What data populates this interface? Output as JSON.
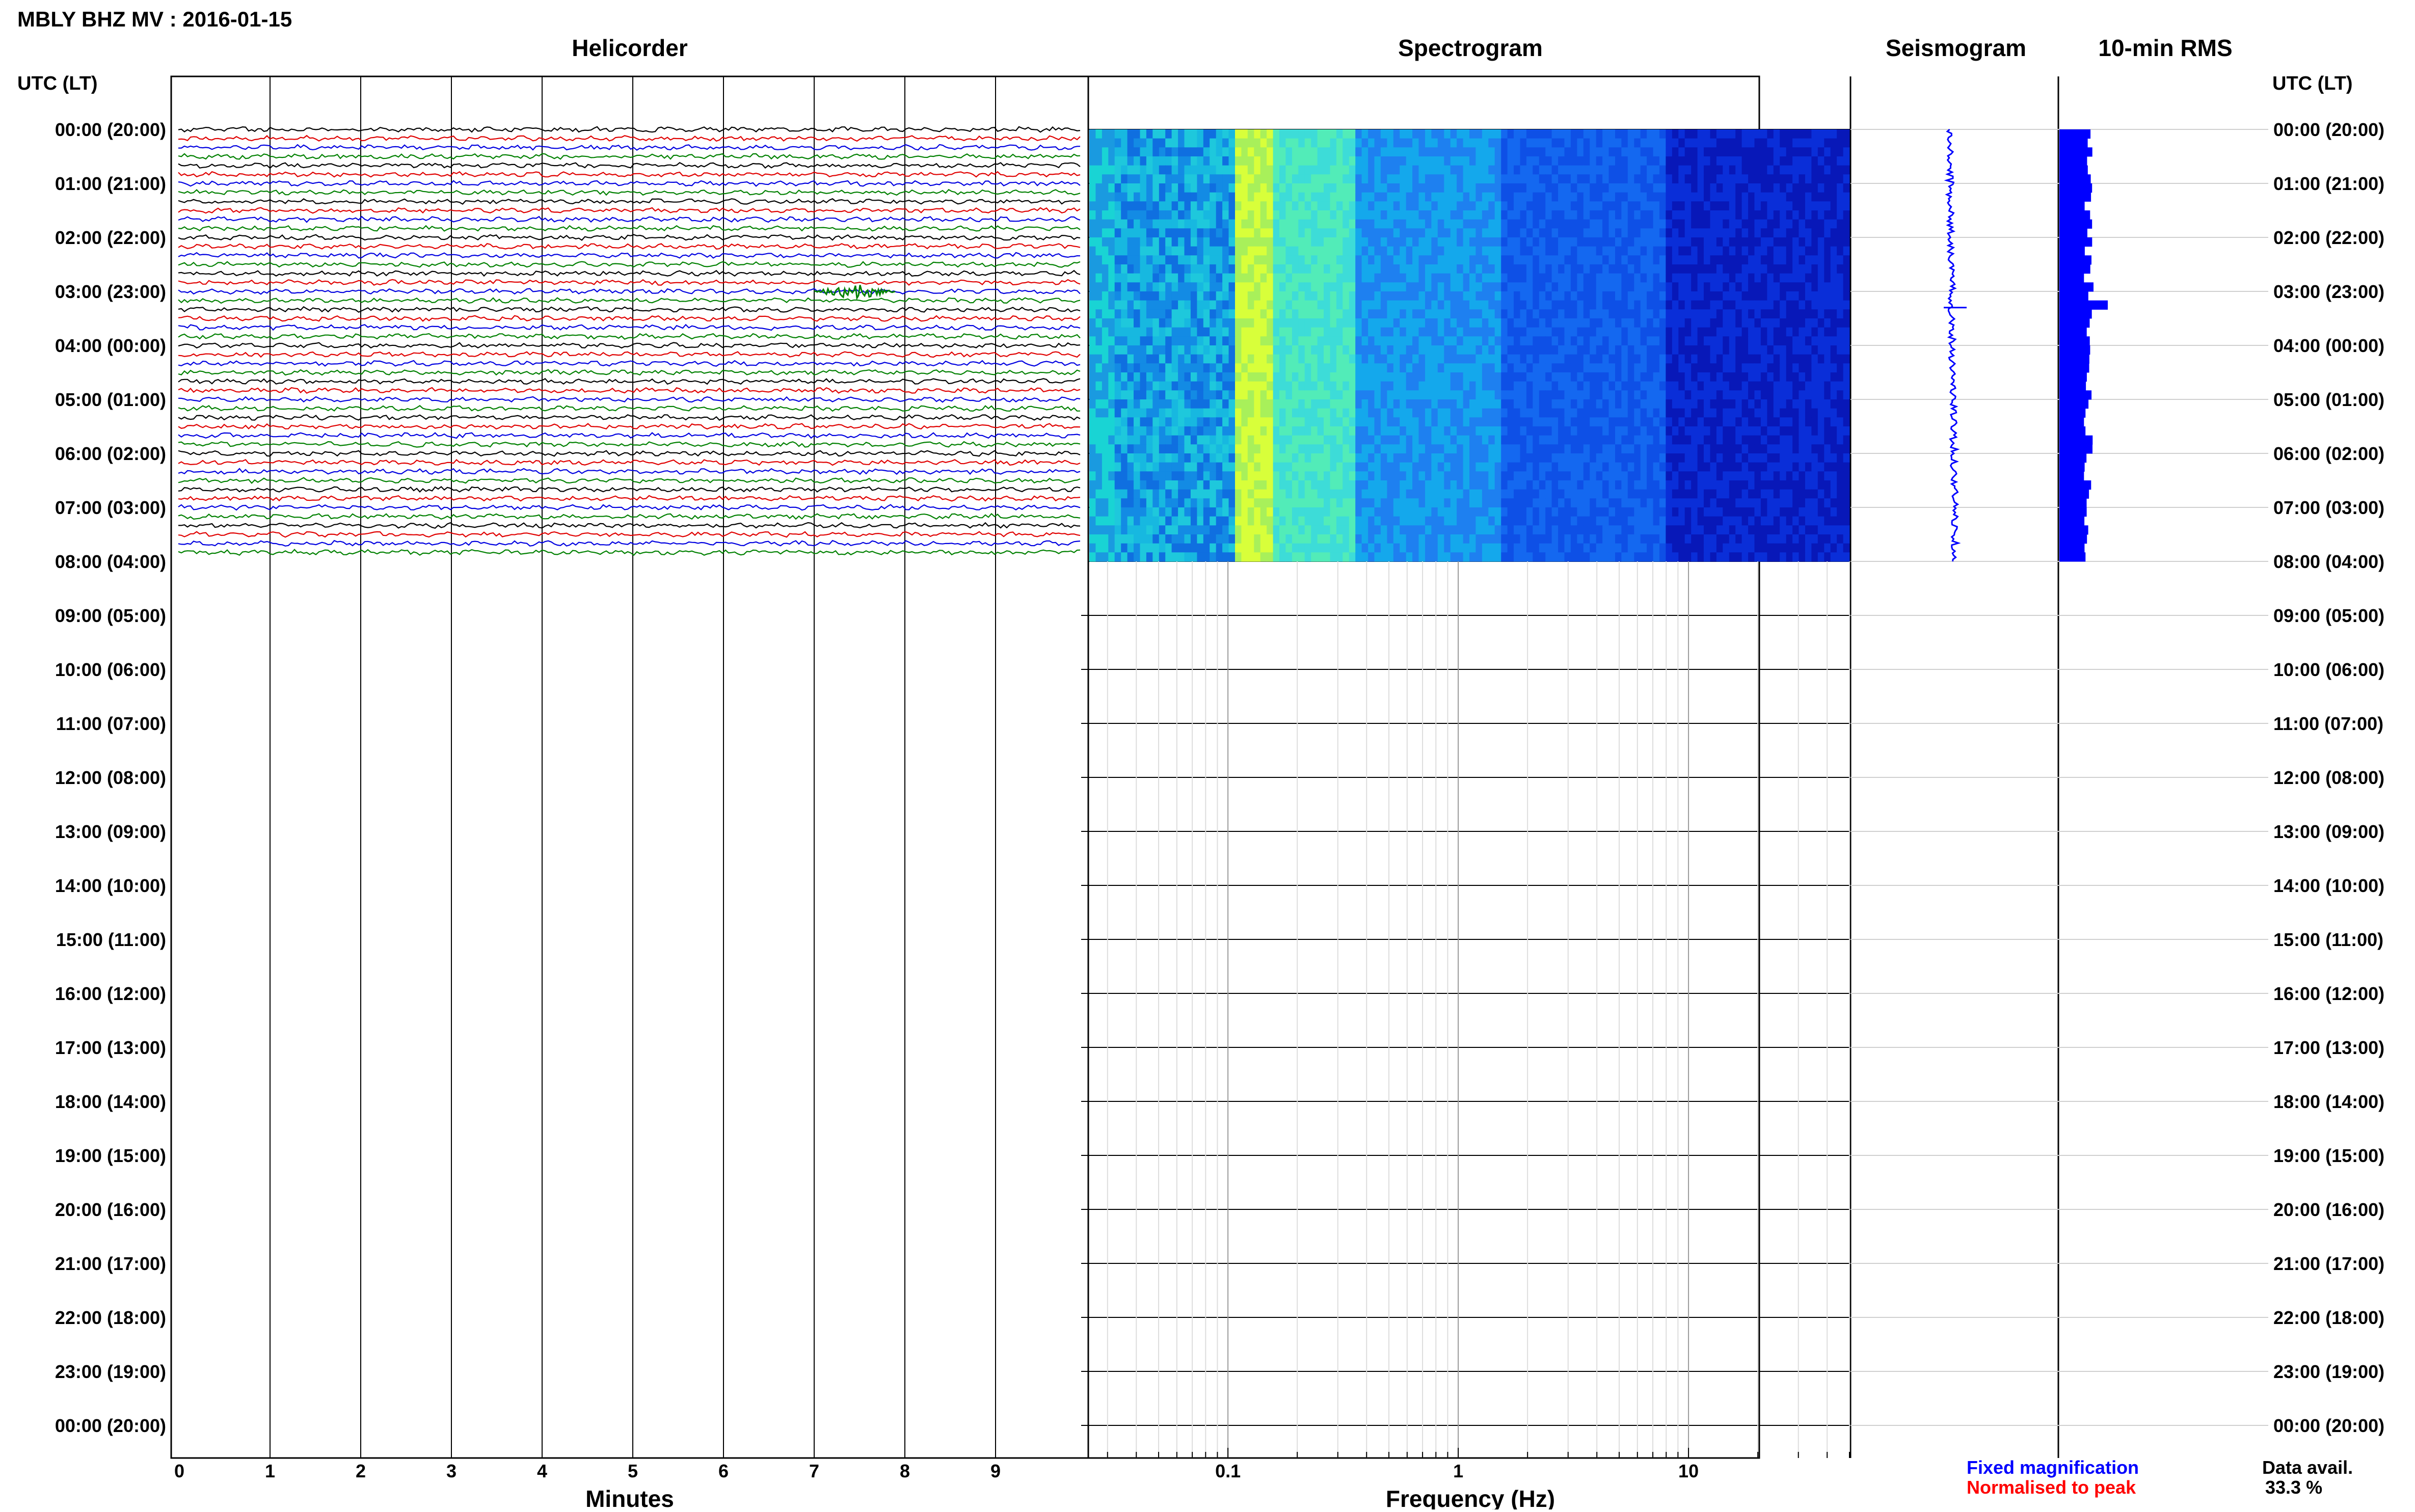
{
  "page": {
    "title": "MBLY BHZ MV : 2016-01-15",
    "left_header": "UTC (LT)",
    "right_header": "UTC (LT)"
  },
  "panels": {
    "helicorder": "Helicorder",
    "spectrogram": "Spectrogram",
    "seismogram": "Seismogram",
    "rms": "10-min RMS"
  },
  "footer": {
    "minutes_label": "Minutes",
    "frequency_label": "Frequency (Hz)",
    "legend_fixed": "Fixed magnification",
    "legend_normalised": "Normalised to peak",
    "data_avail_label": "Data avail.",
    "data_avail_value": "33.3 %"
  },
  "colors": {
    "trace_cycle": [
      "#000000",
      "#e00000",
      "#0000e0",
      "#008000"
    ],
    "legend_fixed": "#0000ff",
    "legend_normalised": "#ff0000",
    "rms_bars": "#0000ff",
    "grid": "#000000"
  },
  "chart_data": [
    {
      "type": "helicorder",
      "title": "Helicorder",
      "xlabel": "Minutes",
      "x_ticks": [
        "0",
        "1",
        "2",
        "3",
        "4",
        "5",
        "6",
        "7",
        "8",
        "9"
      ],
      "xlim": [
        0,
        10
      ],
      "y_tick_labels": [
        "00:00 (20:00)",
        "01:00 (21:00)",
        "02:00 (22:00)",
        "03:00 (23:00)",
        "04:00 (00:00)",
        "05:00 (01:00)",
        "06:00 (02:00)",
        "07:00 (03:00)",
        "08:00 (04:00)",
        "09:00 (05:00)",
        "10:00 (06:00)",
        "11:00 (07:00)",
        "12:00 (08:00)",
        "13:00 (09:00)",
        "14:00 (10:00)",
        "15:00 (11:00)",
        "16:00 (12:00)",
        "17:00 (13:00)",
        "18:00 (14:00)",
        "19:00 (15:00)",
        "20:00 (16:00)",
        "21:00 (17:00)",
        "22:00 (18:00)",
        "23:00 (19:00)",
        "00:00 (20:00)"
      ],
      "data_hours": [
        0,
        8
      ],
      "trace_minutes_per_line": 10,
      "event": {
        "utc": "03:00",
        "minute_start": 7.0,
        "minute_end": 7.9
      }
    },
    {
      "type": "spectrogram",
      "title": "Spectrogram",
      "xlabel": "Frequency (Hz)",
      "x_scale": "log",
      "x_ticks": [
        "0.1",
        "1",
        "10"
      ],
      "xlim": [
        0.025,
        50
      ],
      "data_hours": [
        0,
        8
      ]
    },
    {
      "type": "seismogram",
      "title": "Seismogram",
      "data_hours": [
        0,
        8
      ]
    },
    {
      "type": "bar",
      "title": "10-min RMS",
      "data_hours": [
        0,
        8
      ],
      "peak_hour": 3.1
    }
  ]
}
